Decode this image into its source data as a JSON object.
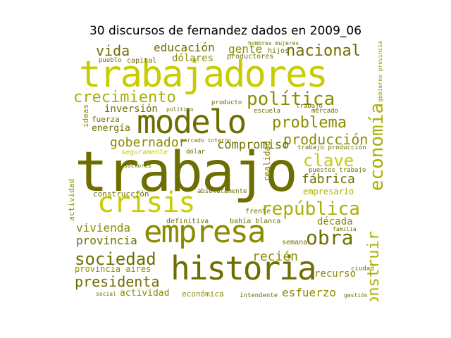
{
  "title": "30 discursos de fernandez dados en 2009_06",
  "palette": {
    "bright": "#c8cc00",
    "mid": "#aab000",
    "olive": "#8c8c00",
    "dark": "#6e6e00"
  },
  "words": {
    "trabajo": "trabajo",
    "trabajadores": "trabajadores",
    "modelo": "modelo",
    "empresa": "empresa",
    "historia": "historia",
    "crisis": "crisis",
    "republica": "república",
    "politica": "política",
    "nacional": "nacional",
    "crecimiento": "crecimiento",
    "problema": "problema",
    "produccion": "producción",
    "economia": "economía",
    "clave": "clave",
    "obra": "obra",
    "sociedad": "sociedad",
    "presidenta": "presidenta",
    "vivienda": "vivienda",
    "provincia": "provincia",
    "construir": "construir",
    "gobernador": "gobernador",
    "compromiso": "compromiso",
    "vida": "vida",
    "educacion": "educación",
    "gente": "gente",
    "fabrica": "fábrica",
    "inversion": "inversión",
    "energia": "energía",
    "decada": "década",
    "recien": "recién",
    "esfuerzo": "esfuerzo",
    "actividad": "actividad",
    "economica": "económica",
    "provincia_aires": "provincia aires",
    "dolares": "dólares",
    "empresario": "empresario",
    "recurso": "recurso",
    "construccion": "construcción",
    "definitiva": "definitiva",
    "bahia_blanca": "bahía blanca",
    "frente": "frente",
    "trabajo_produccion": "trabajo producción",
    "puestos_trabajo": "puestos trabajo",
    "realidad": "realidad",
    "fuerza": "fuerza",
    "ideas": "ideas",
    "capital": "capital",
    "escuela": "escuela",
    "mercado": "mercado",
    "semana": "semana",
    "actividad_v": "actividad",
    "seguramente": "seguramente",
    "producto": "producto",
    "absolutamente": "absolutamente",
    "familia": "familia",
    "mercado_interno": "mercado interno",
    "hombres_mujeres": "hombres mujeres",
    "gobierno_provincia": "gobierno provincia",
    "intendente": "intendente",
    "gestion": "gestión",
    "productores": "productores",
    "hijos": "hijos",
    "pueblo": "pueblo",
    "politico": "político",
    "trabajo_small": "trabajo",
    "ciudad": "ciudad",
    "social": "social",
    "dolar": "dólar",
    "sectores": "sectores"
  }
}
